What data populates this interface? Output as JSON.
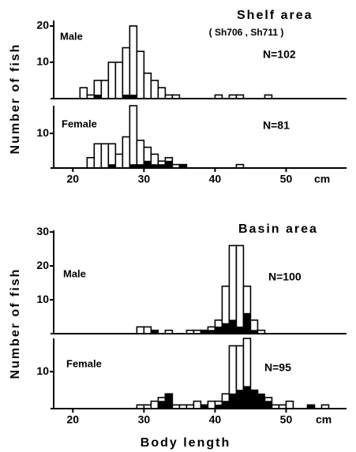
{
  "chart_data": [
    {
      "type": "histogram",
      "title": "Shelf area",
      "subtitle": "( Sh706 , Sh711 )",
      "ylabel": "Number of fish",
      "label": "Male",
      "annotation": "N=102",
      "bins": [
        20,
        21,
        22,
        23,
        24,
        25,
        26,
        27,
        28,
        29,
        30,
        31,
        32,
        33,
        34,
        35,
        36,
        37,
        38,
        39,
        40,
        41,
        42,
        43,
        44,
        45,
        46,
        47,
        48,
        49,
        50,
        51,
        52,
        53,
        54,
        55,
        56
      ],
      "series": [
        {
          "color": "#ffffff",
          "values": [
            0,
            3,
            1,
            5,
            5,
            10,
            10,
            14,
            20,
            13,
            7,
            5,
            3,
            1,
            1,
            0,
            0,
            0,
            0,
            0,
            1,
            0,
            1,
            1,
            0,
            0,
            0,
            1,
            0,
            0,
            0,
            0,
            0,
            0,
            0,
            0
          ]
        },
        {
          "color": "#000000",
          "values": [
            0,
            0,
            0,
            1,
            0,
            0,
            0,
            1,
            1,
            0,
            0,
            0,
            0,
            0,
            0,
            0,
            0,
            0,
            0,
            0,
            0,
            0,
            0,
            0,
            0,
            0,
            0,
            0,
            0,
            0,
            0,
            0,
            0,
            0,
            0,
            0
          ]
        }
      ],
      "xlim": [
        17.3,
        58.5
      ],
      "ylim": [
        0,
        21.5
      ],
      "yticks": [
        10,
        20
      ]
    },
    {
      "type": "histogram",
      "label": "Female",
      "annotation": "N=81",
      "xunit": "cm",
      "bins": [
        20,
        21,
        22,
        23,
        24,
        25,
        26,
        27,
        28,
        29,
        30,
        31,
        32,
        33,
        34,
        35,
        36,
        37,
        38,
        39,
        40,
        41,
        42,
        43,
        44,
        45,
        46,
        47,
        48,
        49,
        50,
        51,
        52,
        53,
        54,
        55,
        56
      ],
      "series": [
        {
          "color": "#ffffff",
          "values": [
            0,
            0,
            3,
            7,
            7,
            7,
            4,
            9,
            18,
            8,
            6,
            4,
            2,
            3,
            1,
            1,
            0,
            0,
            0,
            0,
            0,
            0,
            0,
            1,
            0,
            0,
            0,
            0,
            0,
            0,
            0,
            0,
            0,
            0,
            0,
            0
          ]
        },
        {
          "color": "#000000",
          "values": [
            0,
            0,
            0,
            0,
            0,
            1,
            0,
            0,
            1,
            1,
            2,
            1,
            1,
            2,
            0,
            1,
            0,
            0,
            0,
            0,
            0,
            0,
            0,
            0,
            0,
            0,
            0,
            0,
            0,
            0,
            0,
            0,
            0,
            0,
            0,
            0
          ]
        }
      ],
      "xlim": [
        17.3,
        58.5
      ],
      "ylim": [
        0,
        18
      ],
      "yticks": [
        10
      ],
      "xticks": [
        20,
        30,
        40,
        50
      ]
    },
    {
      "type": "histogram",
      "title": "Basin area",
      "ylabel": "Number of fish",
      "label": "Male",
      "annotation": "N=100",
      "bins": [
        20,
        21,
        22,
        23,
        24,
        25,
        26,
        27,
        28,
        29,
        30,
        31,
        32,
        33,
        34,
        35,
        36,
        37,
        38,
        39,
        40,
        41,
        42,
        43,
        44,
        45,
        46,
        47,
        48,
        49,
        50,
        51,
        52,
        53,
        54,
        55,
        56
      ],
      "series": [
        {
          "color": "#ffffff",
          "values": [
            0,
            0,
            0,
            0,
            0,
            0,
            0,
            0,
            0,
            2,
            2,
            1,
            0,
            1,
            0,
            0,
            1,
            1,
            1,
            2,
            4,
            14,
            26,
            26,
            14,
            4,
            1,
            0,
            0,
            0,
            0,
            0,
            0,
            0,
            0,
            0
          ]
        },
        {
          "color": "#000000",
          "values": [
            0,
            0,
            0,
            0,
            0,
            0,
            0,
            0,
            0,
            0,
            0,
            1,
            0,
            0,
            0,
            0,
            0,
            0,
            1,
            1,
            2,
            3,
            4,
            2,
            6,
            1,
            0,
            0,
            0,
            0,
            0,
            0,
            0,
            0,
            0,
            0
          ]
        }
      ],
      "xlim": [
        17.3,
        58.5
      ],
      "ylim": [
        0,
        30.5
      ],
      "yticks": [
        10,
        20,
        30
      ]
    },
    {
      "type": "histogram",
      "label": "Female",
      "annotation": "N=95",
      "xunit": "cm",
      "xlabel": "Body length",
      "bins": [
        20,
        21,
        22,
        23,
        24,
        25,
        26,
        27,
        28,
        29,
        30,
        31,
        32,
        33,
        34,
        35,
        36,
        37,
        38,
        39,
        40,
        41,
        42,
        43,
        44,
        45,
        46,
        47,
        48,
        49,
        50,
        51,
        52,
        53,
        54,
        55,
        56
      ],
      "series": [
        {
          "color": "#ffffff",
          "values": [
            0,
            0,
            0,
            0,
            0,
            0,
            0,
            0,
            0,
            1,
            1,
            2,
            3,
            4,
            1,
            1,
            1,
            2,
            1,
            2,
            2,
            4,
            17,
            17,
            19,
            5,
            3,
            3,
            1,
            1,
            2,
            0,
            0,
            1,
            0,
            1
          ]
        },
        {
          "color": "#000000",
          "values": [
            0,
            0,
            0,
            0,
            0,
            0,
            0,
            0,
            0,
            0,
            0,
            0,
            2,
            4,
            0,
            0,
            0,
            0,
            1,
            0,
            1,
            2,
            4,
            5,
            6,
            5,
            4,
            2,
            0,
            0,
            0,
            0,
            0,
            1,
            0,
            0
          ]
        }
      ],
      "xlim": [
        17.3,
        58.5
      ],
      "ylim": [
        0,
        19
      ],
      "yticks": [
        10
      ],
      "xticks": [
        20,
        30,
        40,
        50
      ]
    }
  ]
}
